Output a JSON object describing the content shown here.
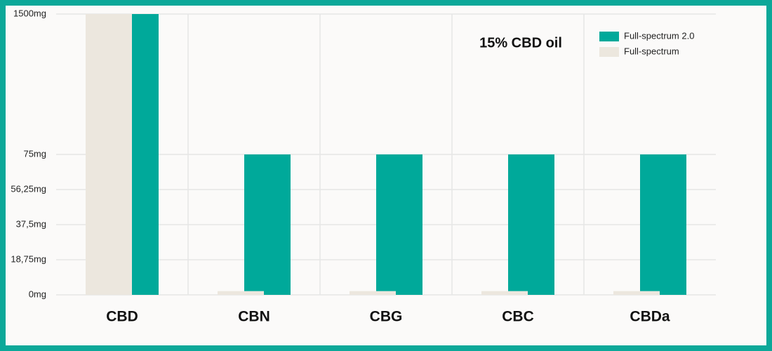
{
  "chart_data": {
    "type": "bar",
    "title": "15% CBD oil",
    "categories": [
      "CBD",
      "CBN",
      "CBG",
      "CBC",
      "CBDa"
    ],
    "series": [
      {
        "name": "Full-spectrum 2.0",
        "color": "#00a99a",
        "values": [
          1500,
          75,
          75,
          75,
          75
        ]
      },
      {
        "name": "Full-spectrum",
        "color": "#ece7de",
        "values": [
          1500,
          2,
          2,
          2,
          2
        ]
      }
    ],
    "ylim": [
      0,
      1500
    ],
    "yticks": [
      {
        "value": 0,
        "label": "0mg"
      },
      {
        "value": 18.75,
        "label": "18,75mg"
      },
      {
        "value": 37.5,
        "label": "37,5mg"
      },
      {
        "value": 56.25,
        "label": "56,25mg"
      },
      {
        "value": 75,
        "label": "75mg"
      },
      {
        "value": 1500,
        "label": "1500mg"
      }
    ],
    "grid": true,
    "legend": "top-right"
  }
}
